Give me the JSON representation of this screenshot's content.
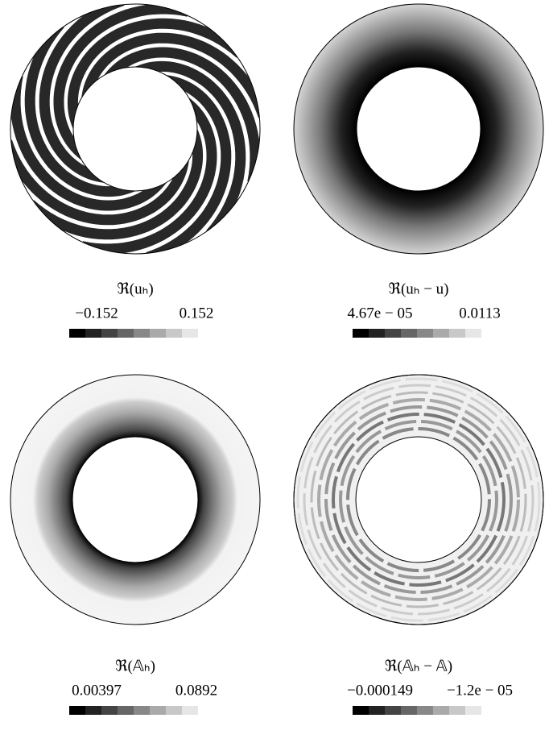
{
  "panels": [
    {
      "label": "ℜ(uₕ)",
      "min": "−0.152",
      "max": "0.152"
    },
    {
      "label": "ℜ(uₕ − u)",
      "min": "4.67e − 05",
      "max": "0.0113"
    },
    {
      "label": "ℜ(𝔸ₕ)",
      "min": "0.00397",
      "max": "0.0892"
    },
    {
      "label": "ℜ(𝔸ₕ − 𝔸)",
      "min": "−0.000149",
      "max": "−1.2e − 05"
    }
  ]
}
